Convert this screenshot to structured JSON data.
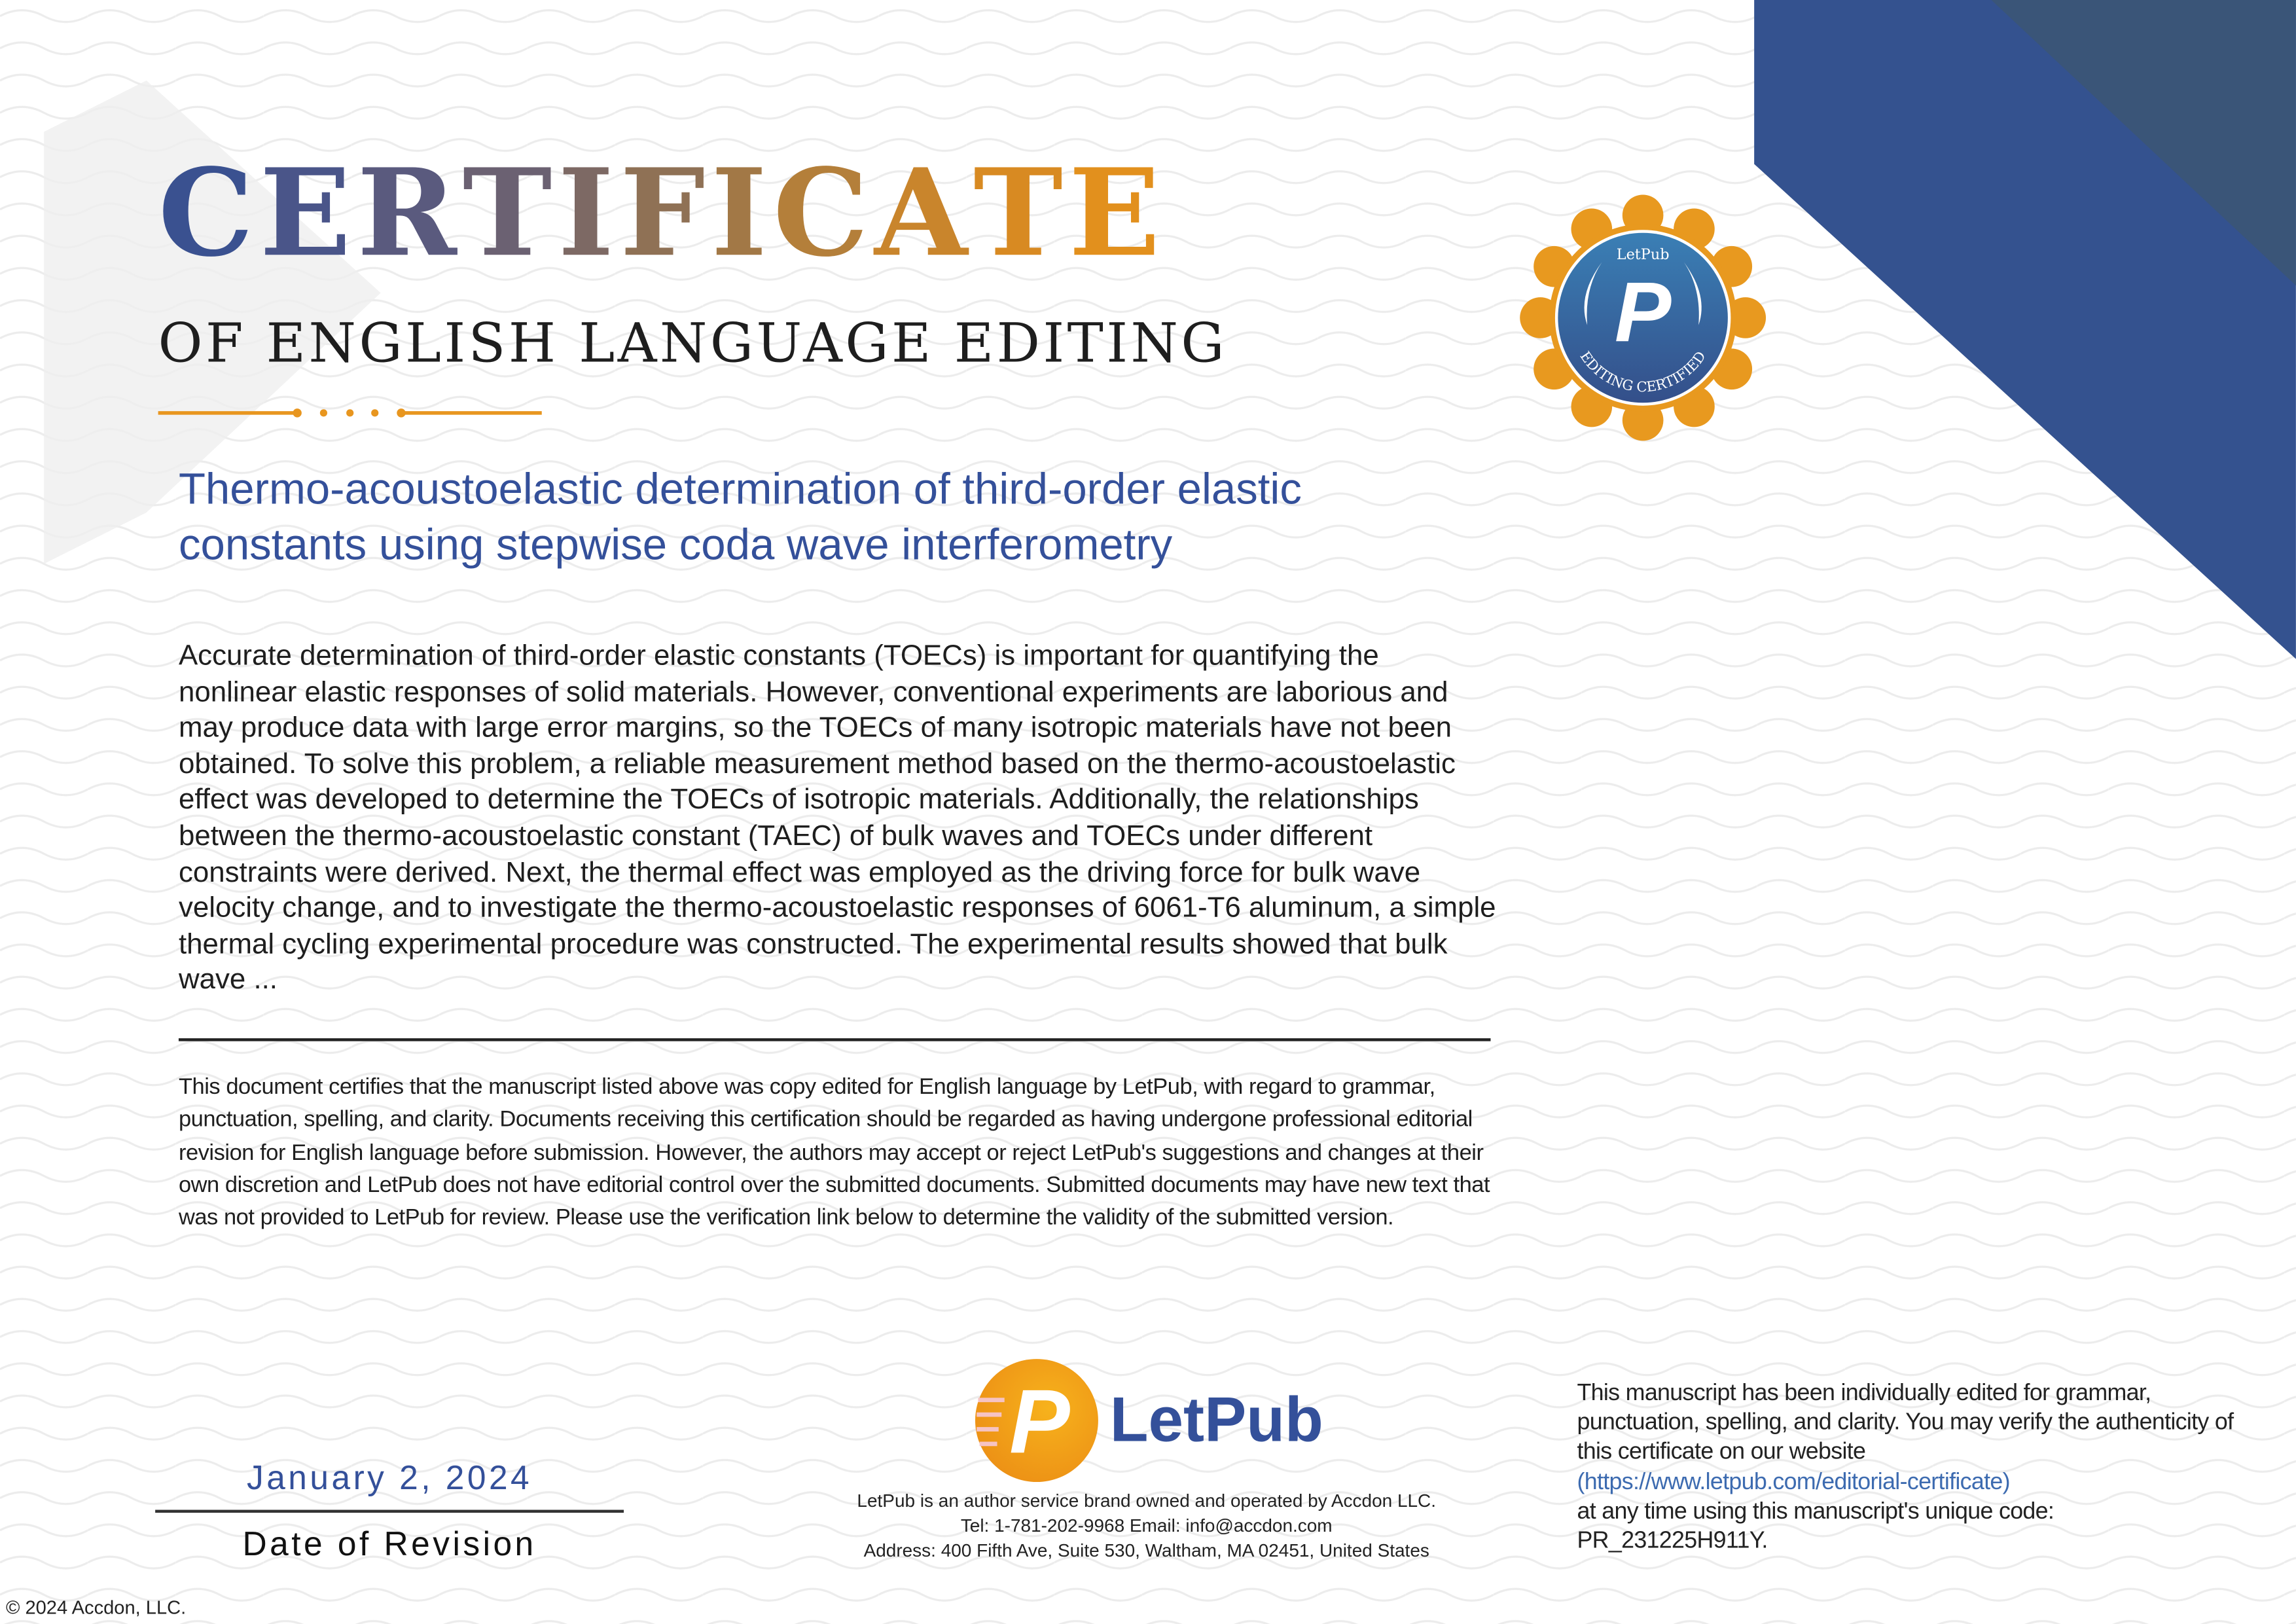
{
  "header": {
    "title_letters": [
      "C",
      "E",
      "R",
      "T",
      "I",
      "F",
      "I",
      "C",
      "A",
      "T",
      "E"
    ],
    "title_colors": [
      "#3a5190",
      "#4a5589",
      "#5a5a7e",
      "#6b6172",
      "#7d6964",
      "#8f7155",
      "#a27846",
      "#b47f3a",
      "#c9852c",
      "#d88a22",
      "#e2901d"
    ],
    "subtitle": "OF ENGLISH LANGUAGE EDITING"
  },
  "seal": {
    "top_text": "LetPub",
    "letter": "P",
    "bottom_text": "EDITING CERTIFIED"
  },
  "manuscript": {
    "title": "Thermo-acoustoelastic determination of third-order elastic constants using stepwise coda wave interferometry",
    "abstract": "Accurate determination of third-order elastic constants (TOECs) is important for quantifying the nonlinear elastic responses of solid materials. However, conventional experiments are laborious and may produce data with large error margins, so the TOECs of many isotropic materials have not been obtained. To solve this problem, a reliable measurement method based on the thermo-acoustoelastic effect was developed to determine the TOECs of isotropic materials. Additionally, the relationships between the thermo-acoustoelastic constant (TAEC) of bulk waves and TOECs under different constraints were derived. Next, the thermal effect was employed as the driving force for bulk wave velocity change, and to investigate the thermo-acoustoelastic responses of 6061-T6 aluminum, a simple thermal cycling experimental procedure was constructed. The experimental results showed that bulk wave ..."
  },
  "certification_text": "This document certifies that the manuscript listed above was copy edited for English language by LetPub, with regard to grammar, punctuation, spelling, and clarity. Documents receiving this certification should be regarded as having undergone professional editorial revision for English language before submission. However, the authors may accept or reject LetPub's suggestions and changes at their own discretion and LetPub does not have editorial control over the submitted documents. Submitted documents may have new text that was not provided to LetPub for review. Please use the verification link below to determine the validity of the submitted version.",
  "revision": {
    "date": "January 2, 2024",
    "label": "Date of Revision"
  },
  "brand": {
    "logo_letter": "P",
    "name": "LetPub",
    "line1": "LetPub is an author service brand owned and operated by Accdon LLC.",
    "line2": "Tel: 1-781-202-9968 Email: info@accdon.com",
    "line3": "Address: 400 Fifth Ave, Suite 530, Waltham, MA 02451, United States"
  },
  "verification": {
    "text1": "This manuscript has been individually edited for grammar, punctuation, spelling, and clarity. You may verify the authenticity of this certificate on our website",
    "link": "(https://www.letpub.com/editorial-certificate)",
    "text2": "at any time using this manuscript's unique code:",
    "code": "PR_231225H911Y."
  },
  "footer": {
    "copyright": "© 2024 Accdon, LLC."
  },
  "colors": {
    "navy": "#34509a",
    "orange": "#e8961f",
    "dark_navy": "#3a5578"
  }
}
